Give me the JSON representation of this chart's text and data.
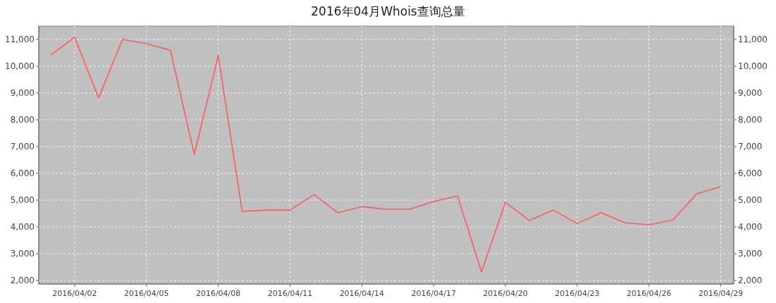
{
  "chart_data": {
    "type": "line",
    "title": "2016年04月Whois查询总量",
    "x": [
      "2016-04-01",
      "2016-04-02",
      "2016-04-03",
      "2016-04-04",
      "2016-04-05",
      "2016-04-06",
      "2016-04-07",
      "2016-04-08",
      "2016-04-09",
      "2016-04-10",
      "2016-04-11",
      "2016-04-12",
      "2016-04-13",
      "2016-04-14",
      "2016-04-15",
      "2016-04-16",
      "2016-04-17",
      "2016-04-18",
      "2016-04-19",
      "2016-04-20",
      "2016-04-21",
      "2016-04-22",
      "2016-04-23",
      "2016-04-24",
      "2016-04-25",
      "2016-04-26",
      "2016-04-27",
      "2016-04-28",
      "2016-04-29"
    ],
    "series": [
      {
        "color": "#ff5a5a",
        "values": [
          10420,
          11080,
          8820,
          11000,
          10840,
          10600,
          6710,
          10400,
          4580,
          4630,
          4630,
          5210,
          4530,
          4760,
          4660,
          4660,
          4950,
          5160,
          2320,
          4920,
          4240,
          4630,
          4130,
          4530,
          4160,
          4080,
          4260,
          5240,
          5500
        ]
      }
    ],
    "xlim": [
      "2016-03-31T12:00",
      "2016-04-29T13:00"
    ],
    "xticks": [
      {
        "value": "2016-04-02",
        "label": "2016/04/02"
      },
      {
        "value": "2016-04-05",
        "label": "2016/04/05"
      },
      {
        "value": "2016-04-08",
        "label": "2016/04/08"
      },
      {
        "value": "2016-04-11",
        "label": "2016/04/11"
      },
      {
        "value": "2016-04-14",
        "label": "2016/04/14"
      },
      {
        "value": "2016-04-17",
        "label": "2016/04/17"
      },
      {
        "value": "2016-04-20",
        "label": "2016/04/20"
      },
      {
        "value": "2016-04-23",
        "label": "2016/04/23"
      },
      {
        "value": "2016-04-26",
        "label": "2016/04/26"
      },
      {
        "value": "2016-04-29",
        "label": "2016/04/29"
      }
    ],
    "ylim": [
      1870,
      11500
    ],
    "yticks": [
      {
        "value": 2000,
        "label": "2,000"
      },
      {
        "value": 3000,
        "label": "3,000"
      },
      {
        "value": 4000,
        "label": "4,000"
      },
      {
        "value": 5000,
        "label": "5,000"
      },
      {
        "value": 6000,
        "label": "6,000"
      },
      {
        "value": 7000,
        "label": "7,000"
      },
      {
        "value": 8000,
        "label": "8,000"
      },
      {
        "value": 9000,
        "label": "9,000"
      },
      {
        "value": 10000,
        "label": "10,000"
      },
      {
        "value": 11000,
        "label": "11,000"
      }
    ],
    "y2lim": [
      1870,
      11500
    ],
    "y2ticks": [
      {
        "value": 2000,
        "label": "2,000"
      },
      {
        "value": 3000,
        "label": "3,000"
      },
      {
        "value": 4000,
        "label": "4,000"
      },
      {
        "value": 5000,
        "label": "5,000"
      },
      {
        "value": 6000,
        "label": "6,000"
      },
      {
        "value": 7000,
        "label": "7,000"
      },
      {
        "value": 8000,
        "label": "8,000"
      },
      {
        "value": 9000,
        "label": "9,000"
      },
      {
        "value": 10000,
        "label": "10,000"
      },
      {
        "value": 11000,
        "label": "11,000"
      }
    ],
    "grid": true,
    "line_style": "solid"
  }
}
